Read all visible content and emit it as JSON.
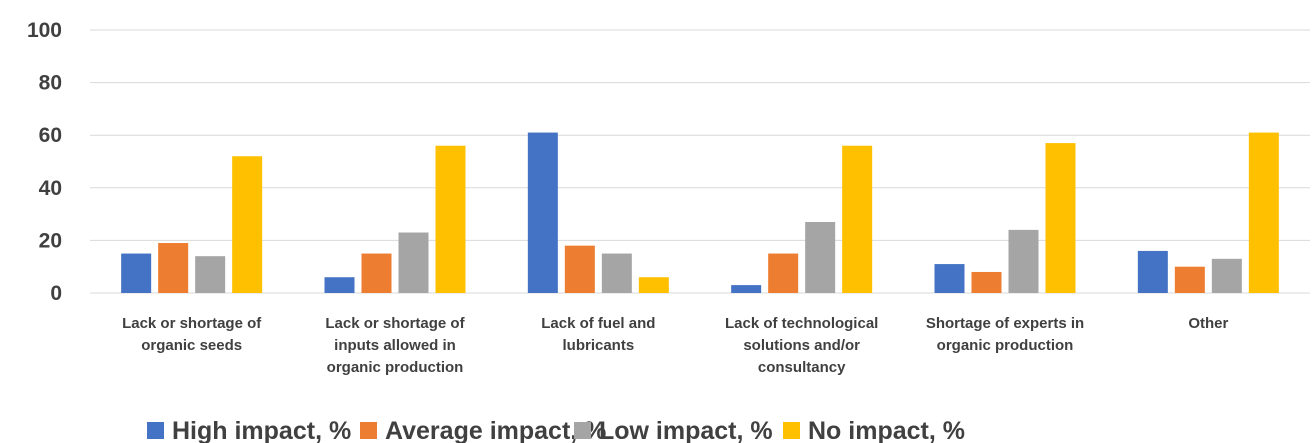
{
  "chart_data": {
    "type": "bar",
    "title": "",
    "xlabel": "",
    "ylabel": "",
    "ylim": [
      0,
      100
    ],
    "yticks": [
      "0",
      "20",
      "40",
      "60",
      "80",
      "100"
    ],
    "grid": true,
    "legend_position": "bottom",
    "categories": [
      [
        "Lack or shortage of",
        "organic seeds"
      ],
      [
        "Lack or shortage of",
        "inputs allowed in",
        "organic production"
      ],
      [
        "Lack of fuel and",
        "lubricants"
      ],
      [
        "Lack of technological",
        "solutions and/or",
        "consultancy"
      ],
      [
        "Shortage of experts in",
        "organic production"
      ],
      [
        "Other"
      ]
    ],
    "series": [
      {
        "name": "High impact, %",
        "color": "#4472c4",
        "values": [
          15,
          6,
          61,
          3,
          11,
          16
        ]
      },
      {
        "name": "Average impact, %",
        "color": "#ed7d31",
        "values": [
          19,
          15,
          18,
          15,
          8,
          10
        ]
      },
      {
        "name": "Low impact, %",
        "color": "#a5a5a5",
        "values": [
          14,
          23,
          15,
          27,
          24,
          13
        ]
      },
      {
        "name": "No impact, %",
        "color": "#ffc000",
        "values": [
          52,
          56,
          6,
          56,
          57,
          61
        ]
      }
    ]
  }
}
